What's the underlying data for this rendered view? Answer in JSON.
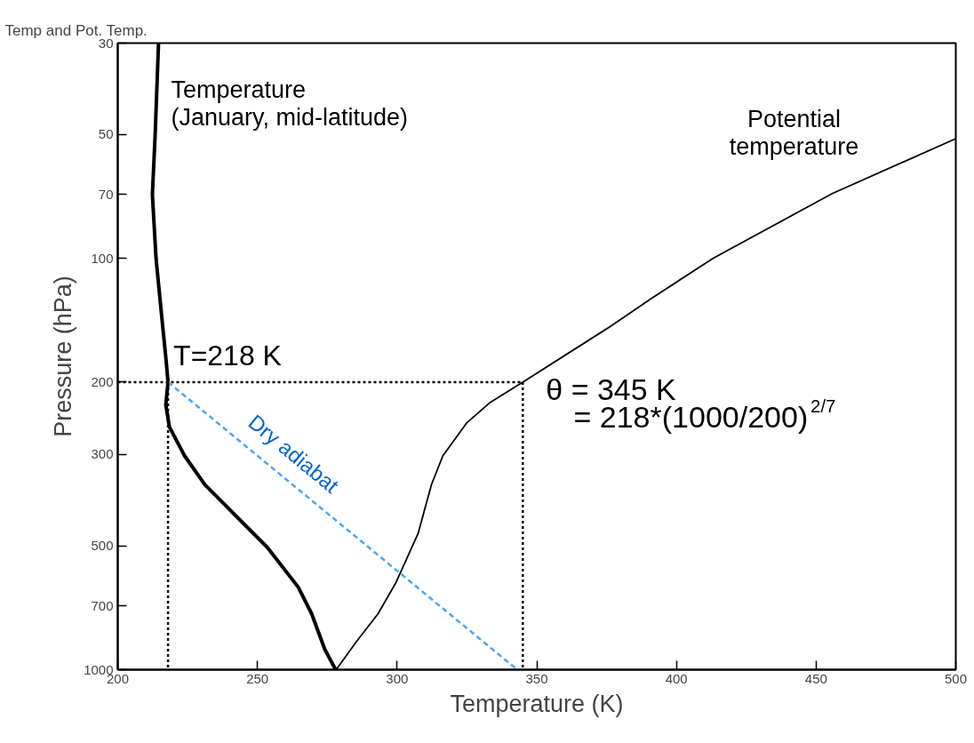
{
  "chart_data": {
    "type": "line",
    "title": "Temp and Pot. Temp.",
    "xlabel": "Temperature (K)",
    "ylabel": "Pressure (hPa)",
    "log": "y",
    "grid": false,
    "marker": "none",
    "xlim": [
      200,
      500
    ],
    "ylim": [
      1000,
      30
    ],
    "xticks": [
      200,
      250,
      300,
      350,
      400,
      450,
      500
    ],
    "yticks": [
      30,
      50,
      70,
      100,
      200,
      300,
      500,
      700,
      1000
    ],
    "series": [
      {
        "color": "#000000",
        "line_style": "solid",
        "x": [
          214.6,
          213.4,
          212.4,
          213.7,
          216.2,
          217.2,
          218,
          217.2,
          218.5,
          223.9,
          231.2,
          242.3,
          253.5,
          264.6,
          269.4,
          274.1,
          278
        ],
        "values": [
          30,
          50,
          70,
          100,
          149,
          174,
          200,
          227,
          257,
          302,
          355,
          423,
          504,
          630,
          731,
          892,
          1000
        ]
      },
      {
        "color": "#000000",
        "line_style": "solid",
        "x": [
          278,
          278.9,
          285.3,
          293.2,
          299.6,
          307.5,
          312.3,
          316.4,
          325,
          333,
          345,
          375.3,
          391.2,
          413.2,
          455.8,
          500
        ],
        "values": [
          1000,
          985,
          857,
          731,
          614,
          467,
          355,
          302,
          251,
          225,
          200,
          148,
          125,
          100,
          69.6,
          51.2
        ]
      },
      {
        "color": "#4da6f0",
        "line_style": "dashed",
        "x": [
          218,
          343
        ],
        "values": [
          200,
          1000
        ]
      },
      {
        "color": "#000000",
        "line_style": "dotted",
        "x": [
          200,
          345
        ],
        "values": [
          200,
          200
        ]
      },
      {
        "color": "#000000",
        "line_style": "dotted",
        "x": [
          218,
          218
        ],
        "values": [
          200,
          1000
        ]
      },
      {
        "color": "#000000",
        "line_style": "dotted",
        "x": [
          345,
          345
        ],
        "values": [
          200,
          1000
        ]
      }
    ],
    "annotations": [
      "Temperature\n(January, mid-latitude)",
      "Potential\ntemperature",
      {
        "text": "T=218 K",
        "x": 218,
        "y": 200
      },
      {
        "text": "θ = 345 K",
        "x": 345,
        "y": 200
      },
      "= 218*(1000/200)$^{2/7}$",
      "Dry adiabat"
    ]
  }
}
